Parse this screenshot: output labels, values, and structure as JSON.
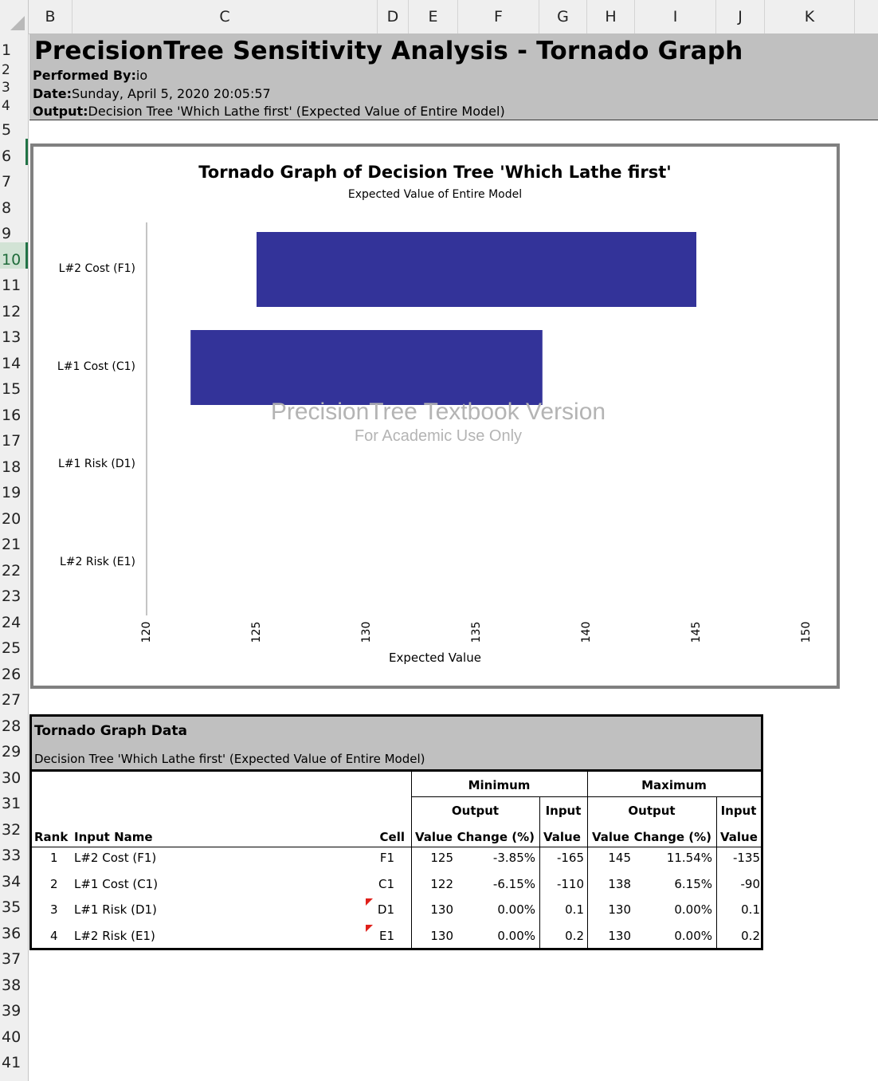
{
  "columns": [
    "B",
    "C",
    "D",
    "E",
    "F",
    "G",
    "H",
    "I",
    "J",
    "K"
  ],
  "rows": [
    "1",
    "2",
    "3",
    "4",
    "5",
    "6",
    "7",
    "8",
    "9",
    "10",
    "11",
    "12",
    "13",
    "14",
    "15",
    "16",
    "17",
    "18",
    "19",
    "20",
    "21",
    "22",
    "23",
    "24",
    "25",
    "26",
    "27",
    "28",
    "29",
    "30",
    "31",
    "32",
    "33",
    "34",
    "35",
    "36",
    "37",
    "38",
    "39",
    "40",
    "41"
  ],
  "header": {
    "title": "PrecisionTree Sensitivity Analysis - Tornado Graph",
    "performed_by_label": "Performed By:",
    "performed_by_value": "io",
    "date_label": "Date:",
    "date_value": "Sunday, April 5, 2020 20:05:57",
    "output_label": "Output:",
    "output_value": "Decision Tree 'Which Lathe first' (Expected Value of Entire Model)"
  },
  "watermark": {
    "line1": "PrecisionTree Textbook Version",
    "line2": "For Academic Use Only"
  },
  "chart_data": {
    "type": "bar",
    "orientation": "horizontal",
    "title": "Tornado Graph of Decision Tree 'Which Lathe first'",
    "subtitle": "Expected Value of Entire Model",
    "xlabel": "Expected Value",
    "ylabel": "",
    "xlim": [
      120,
      150
    ],
    "xticks": [
      "120",
      "125",
      "130",
      "135",
      "140",
      "145",
      "150"
    ],
    "categories": [
      "L#2 Cost (F1)",
      "L#1 Cost (C1)",
      "L#1 Risk (D1)",
      "L#2 Risk (E1)"
    ],
    "ranges": [
      [
        125,
        145
      ],
      [
        122,
        138
      ],
      [
        130,
        130
      ],
      [
        130,
        130
      ]
    ],
    "bar_color": "#333399"
  },
  "table": {
    "title": "Tornado Graph Data",
    "subtitle": "Decision Tree 'Which Lathe first' (Expected Value of Entire Model)",
    "group_minimum": "Minimum",
    "group_maximum": "Maximum",
    "output": "Output",
    "input": "Input",
    "col_rank": "Rank",
    "col_input_name": "Input Name",
    "col_cell": "Cell",
    "col_value": "Value",
    "col_change": "Change (%)",
    "rows": [
      {
        "rank": "1",
        "name": "L#2 Cost (F1)",
        "cell": "F1",
        "min_value": "125",
        "min_change": "-3.85%",
        "min_input": "-165",
        "max_value": "145",
        "max_change": "11.54%",
        "max_input": "-135"
      },
      {
        "rank": "2",
        "name": "L#1 Cost (C1)",
        "cell": "C1",
        "min_value": "122",
        "min_change": "-6.15%",
        "min_input": "-110",
        "max_value": "138",
        "max_change": "6.15%",
        "max_input": "-90"
      },
      {
        "rank": "3",
        "name": "L#1 Risk (D1)",
        "cell": "D1",
        "min_value": "130",
        "min_change": "0.00%",
        "min_input": "0.1",
        "max_value": "130",
        "max_change": "0.00%",
        "max_input": "0.1"
      },
      {
        "rank": "4",
        "name": "L#2 Risk (E1)",
        "cell": "E1",
        "min_value": "130",
        "min_change": "0.00%",
        "min_input": "0.2",
        "max_value": "130",
        "max_change": "0.00%",
        "max_input": "0.2"
      }
    ]
  }
}
